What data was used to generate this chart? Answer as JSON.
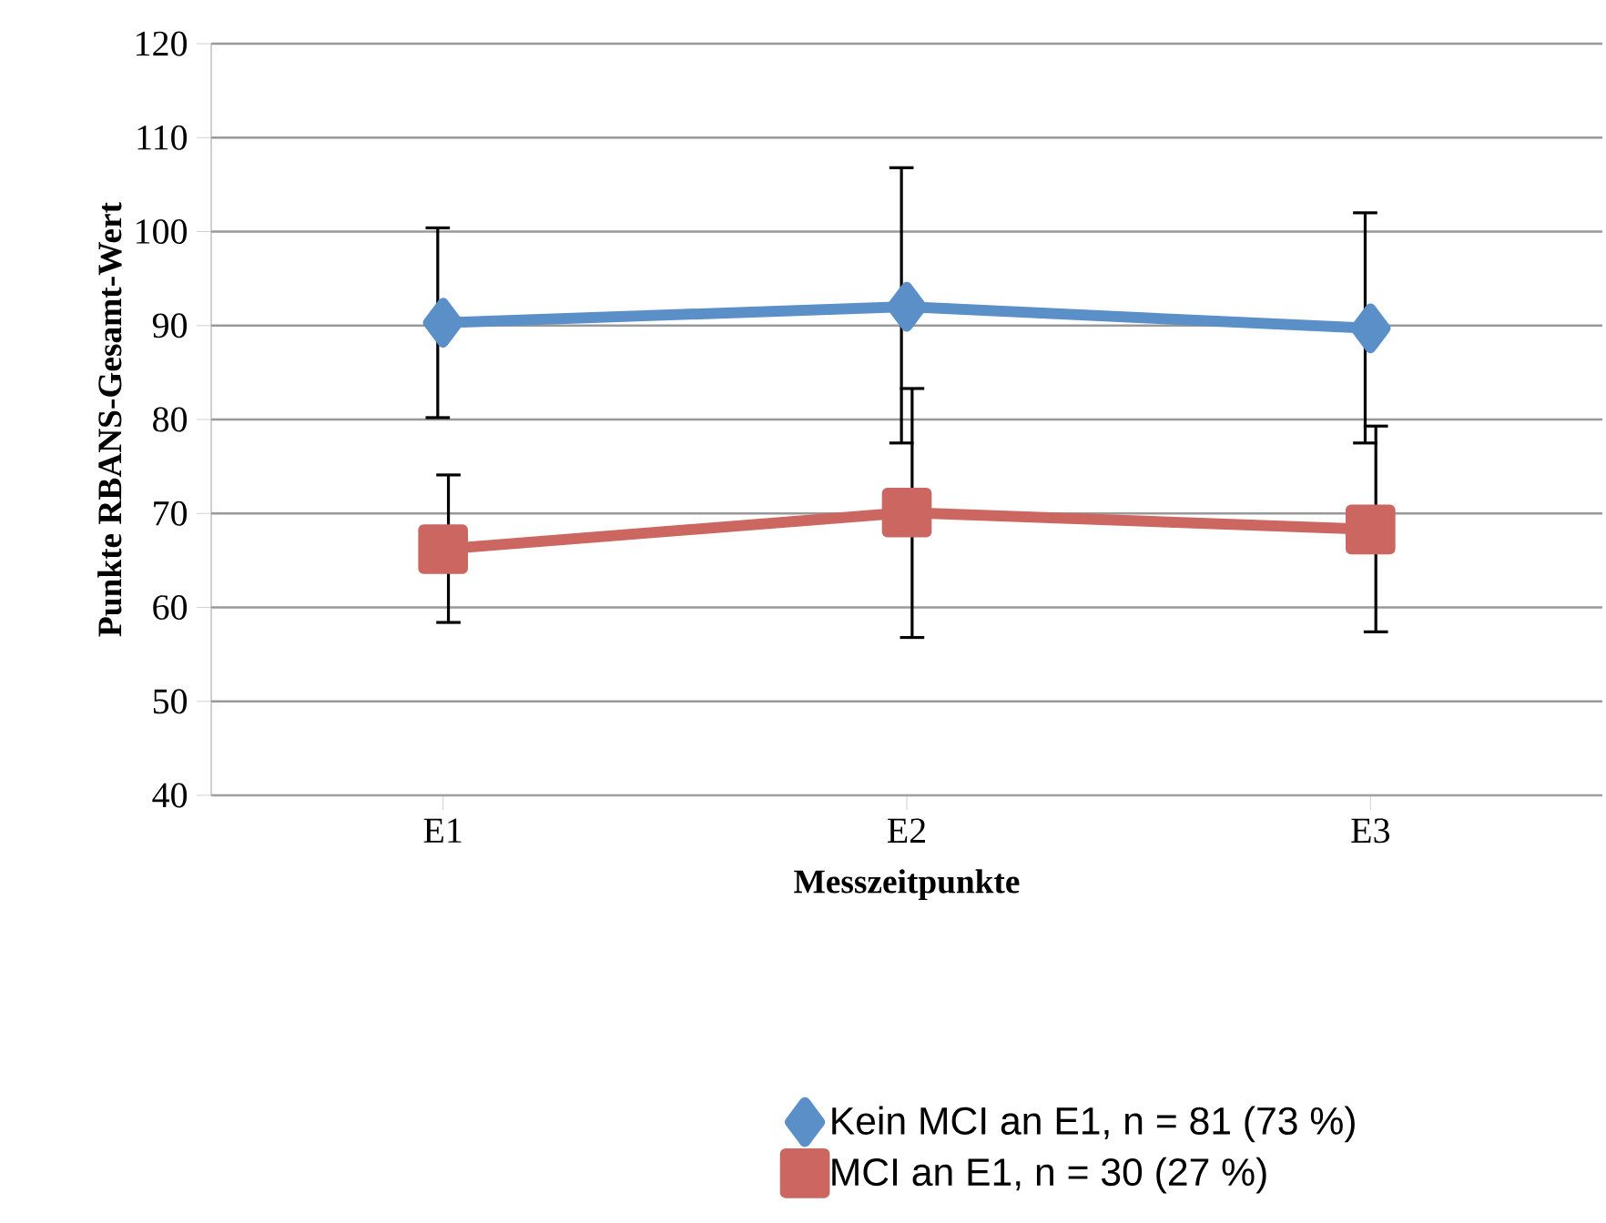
{
  "chart_data": {
    "type": "line",
    "xlabel": "Messzeitpunkte",
    "ylabel": "Punkte RBANS-Gesamt-Wert",
    "categories": [
      "E1",
      "E2",
      "E3"
    ],
    "series": [
      {
        "name": "Kein MCI an E1, n = 81 (73 %)",
        "color": "#5b8fc8",
        "marker": "diamond",
        "values": [
          90.3,
          92.0,
          89.7
        ],
        "errors": [
          [
            80.2,
            100.4
          ],
          [
            77.5,
            106.8
          ],
          [
            77.5,
            102.0
          ]
        ]
      },
      {
        "name": "MCI an E1, n = 30 (27 %)",
        "color": "#cc6660",
        "marker": "square",
        "values": [
          66.2,
          70.1,
          68.3
        ],
        "errors": [
          [
            58.4,
            74.1
          ],
          [
            56.8,
            83.3
          ],
          [
            57.4,
            79.3
          ]
        ]
      }
    ],
    "ylim": [
      40,
      120
    ],
    "yticks": [
      40,
      50,
      60,
      70,
      80,
      90,
      100,
      110,
      120
    ],
    "grid": "y",
    "legend": "bottom",
    "line_style": "solid"
  }
}
